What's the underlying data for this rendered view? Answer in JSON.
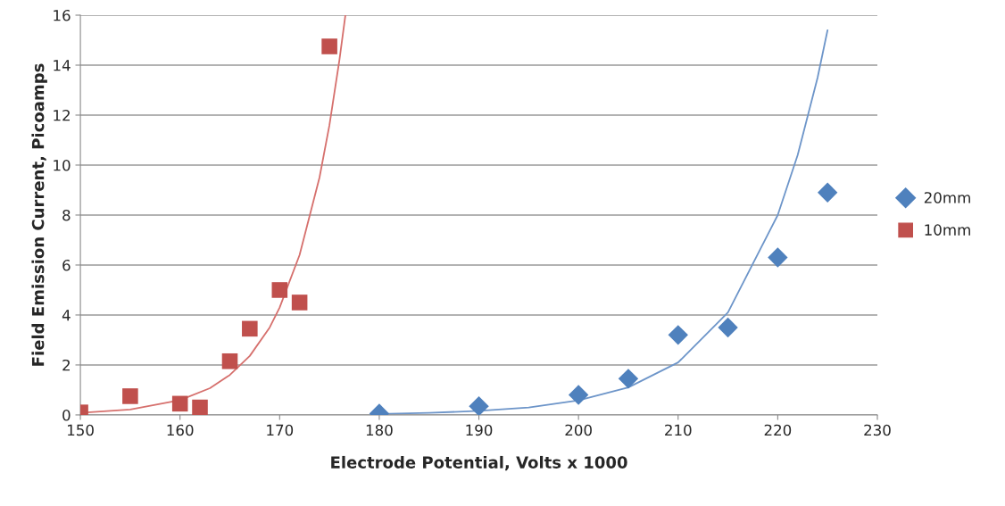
{
  "chart_data": {
    "type": "scatter",
    "xlabel": "Electrode Potential, Volts x 1000",
    "ylabel": "Field Emission Current, Picoamps",
    "xlim": [
      150,
      230
    ],
    "xticks": [
      150,
      160,
      170,
      180,
      190,
      200,
      210,
      220,
      230
    ],
    "ylim": [
      0,
      16
    ],
    "yticks": [
      0,
      2,
      4,
      6,
      8,
      10,
      12,
      14,
      16
    ],
    "grid": "y",
    "legend": "right",
    "series": [
      {
        "name": "20mm",
        "marker": "diamond",
        "color": "#4f81bd",
        "x": [
          180,
          190,
          200,
          205,
          210,
          215,
          220,
          225
        ],
        "values": [
          0.05,
          0.35,
          0.8,
          1.45,
          3.2,
          3.5,
          6.3,
          8.9
        ]
      },
      {
        "name": "10mm",
        "marker": "square",
        "color": "#c0504d",
        "x": [
          150,
          155,
          160,
          162,
          165,
          167,
          170,
          172,
          175
        ],
        "values": [
          0.1,
          0.75,
          0.45,
          0.3,
          2.15,
          3.45,
          5.0,
          4.5,
          14.75
        ]
      },
      {
        "type": "line",
        "marker": "none",
        "color": "#d6706d",
        "x": [
          150,
          155,
          160,
          163,
          165,
          167,
          169,
          170,
          172,
          174,
          175,
          176,
          176.6
        ],
        "values": [
          0.08,
          0.22,
          0.59,
          1.07,
          1.6,
          2.36,
          3.5,
          4.3,
          6.4,
          9.5,
          11.6,
          14.2,
          16
        ]
      },
      {
        "type": "line",
        "marker": "none",
        "color": "#6d95c9",
        "x": [
          180,
          185,
          190,
          195,
          200,
          205,
          210,
          215,
          220,
          222,
          224,
          225
        ],
        "values": [
          0.04,
          0.08,
          0.16,
          0.3,
          0.58,
          1.1,
          2.1,
          4.1,
          8.0,
          10.4,
          13.5,
          15.4
        ]
      }
    ]
  }
}
